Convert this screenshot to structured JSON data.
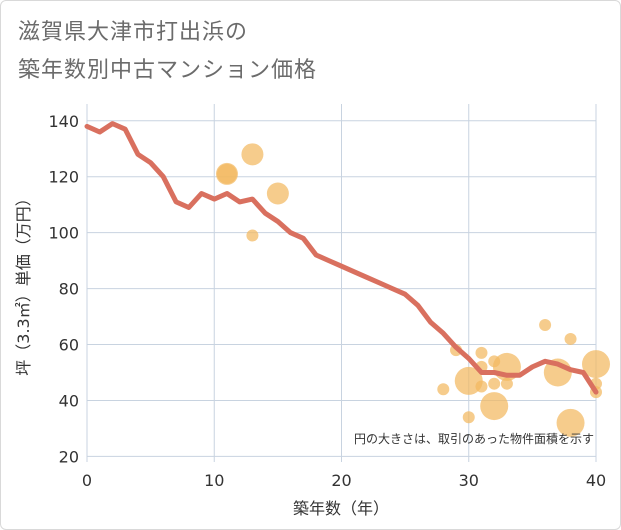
{
  "title_line1": "滋賀県大津市打出浜の",
  "title_line2": "築年数別中古マンション価格",
  "chart_data": {
    "type": "scatter",
    "title": "滋賀県大津市打出浜の築年数別中古マンション価格",
    "xlabel": "築年数（年）",
    "ylabel": "坪（3.3㎡）単価（万円）",
    "xlim": [
      0,
      40
    ],
    "ylim": [
      18,
      146
    ],
    "xticks": [
      0,
      10,
      20,
      30,
      40
    ],
    "yticks": [
      20,
      40,
      60,
      80,
      100,
      120,
      140
    ],
    "grid": true,
    "note": "円の大きさは、取引のあった物件面積を示す",
    "colors": {
      "line": "#d9705f",
      "bubble": "#f2b860",
      "grid": "#c8d3e0"
    },
    "series": [
      {
        "type": "line",
        "x": [
          0,
          1,
          2,
          3,
          4,
          5,
          6,
          7,
          8,
          9,
          10,
          11,
          12,
          13,
          14,
          15,
          16,
          17,
          18,
          19,
          20,
          21,
          22,
          23,
          24,
          25,
          26,
          27,
          28,
          29,
          30,
          31,
          32,
          33,
          34,
          35,
          36,
          37,
          38,
          39,
          40
        ],
        "y": [
          138,
          136,
          139,
          137,
          128,
          125,
          120,
          111,
          109,
          114,
          112,
          114,
          111,
          112,
          107,
          104,
          100,
          98,
          92,
          90,
          88,
          86,
          84,
          82,
          80,
          78,
          74,
          68,
          64,
          59,
          55,
          50,
          50,
          49,
          49,
          52,
          54,
          53,
          51,
          50,
          43
        ]
      },
      {
        "type": "scatter",
        "points": [
          {
            "x": 11,
            "y": 121,
            "size": 3
          },
          {
            "x": 11,
            "y": 121,
            "size": 2
          },
          {
            "x": 13,
            "y": 128,
            "size": 3
          },
          {
            "x": 13,
            "y": 99,
            "size": 1
          },
          {
            "x": 15,
            "y": 114,
            "size": 3
          },
          {
            "x": 28,
            "y": 44,
            "size": 1
          },
          {
            "x": 29,
            "y": 58,
            "size": 1
          },
          {
            "x": 30,
            "y": 47,
            "size": 4
          },
          {
            "x": 30,
            "y": 34,
            "size": 1
          },
          {
            "x": 31,
            "y": 57,
            "size": 1
          },
          {
            "x": 31,
            "y": 52,
            "size": 1
          },
          {
            "x": 31,
            "y": 45,
            "size": 1
          },
          {
            "x": 32,
            "y": 54,
            "size": 1
          },
          {
            "x": 32,
            "y": 46,
            "size": 1
          },
          {
            "x": 32,
            "y": 38,
            "size": 4
          },
          {
            "x": 33,
            "y": 52,
            "size": 4
          },
          {
            "x": 33,
            "y": 46,
            "size": 1
          },
          {
            "x": 36,
            "y": 67,
            "size": 1
          },
          {
            "x": 37,
            "y": 50,
            "size": 4
          },
          {
            "x": 38,
            "y": 62,
            "size": 1
          },
          {
            "x": 38,
            "y": 32,
            "size": 4
          },
          {
            "x": 40,
            "y": 53,
            "size": 4
          },
          {
            "x": 40,
            "y": 46,
            "size": 1
          },
          {
            "x": 40,
            "y": 43,
            "size": 1
          }
        ]
      }
    ]
  }
}
